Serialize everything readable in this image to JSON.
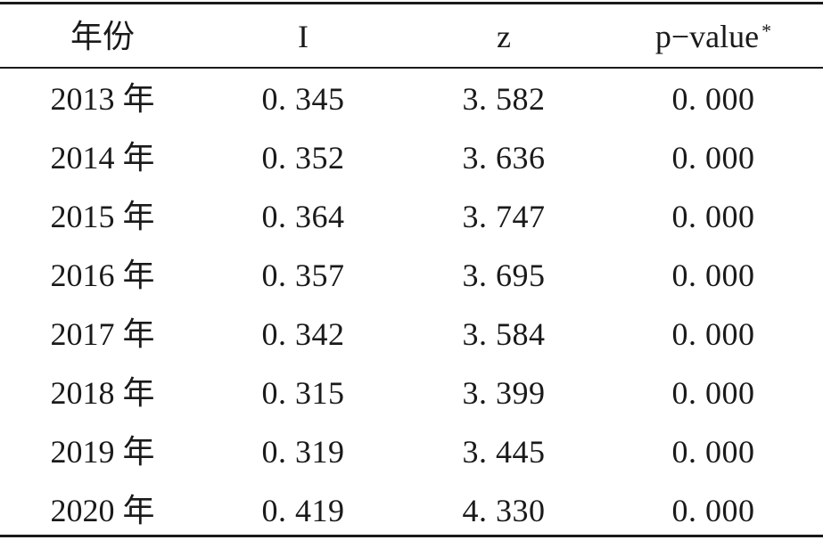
{
  "table": {
    "headers": {
      "year": "年份",
      "i": "I",
      "z": "z",
      "p": "p−value",
      "p_marker": "*"
    },
    "rows": [
      {
        "year": "2013 年",
        "i": "0. 345",
        "z": "3. 582",
        "p": "0. 000"
      },
      {
        "year": "2014 年",
        "i": "0. 352",
        "z": "3. 636",
        "p": "0. 000"
      },
      {
        "year": "2015 年",
        "i": "0. 364",
        "z": "3. 747",
        "p": "0. 000"
      },
      {
        "year": "2016 年",
        "i": "0. 357",
        "z": "3. 695",
        "p": "0. 000"
      },
      {
        "year": "2017 年",
        "i": "0. 342",
        "z": "3. 584",
        "p": "0. 000"
      },
      {
        "year": "2018 年",
        "i": "0. 315",
        "z": "3. 399",
        "p": "0. 000"
      },
      {
        "year": "2019 年",
        "i": "0. 319",
        "z": "3. 445",
        "p": "0. 000"
      },
      {
        "year": "2020 年",
        "i": "0. 419",
        "z": "4. 330",
        "p": "0. 000"
      }
    ]
  }
}
